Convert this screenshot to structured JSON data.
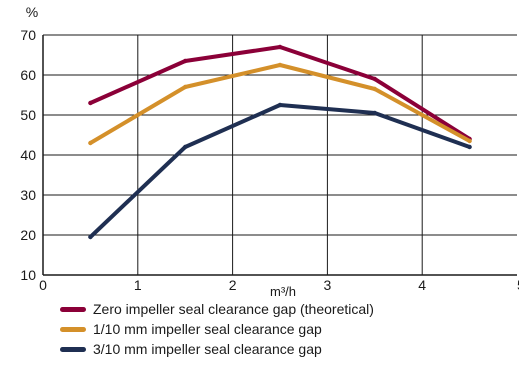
{
  "chart_data": {
    "type": "line",
    "ylabel": "%",
    "xlabel": "m³/h",
    "xlim": [
      0,
      5
    ],
    "ylim": [
      10,
      70
    ],
    "x_ticks": [
      "0",
      "1",
      "2",
      "3",
      "4",
      "5"
    ],
    "y_ticks": [
      "10",
      "20",
      "30",
      "40",
      "50",
      "60",
      "70"
    ],
    "grid": true,
    "legend_position": "bottom-left",
    "series": [
      {
        "name": "Zero impeller seal clearance gap (theoretical)",
        "color": "#8b0038",
        "x": [
          0.5,
          1.5,
          2.5,
          3.5,
          4.5
        ],
        "values": [
          53,
          63.5,
          67,
          59,
          44
        ]
      },
      {
        "name": "1/10 mm impeller seal clearance gap",
        "color": "#d4902a",
        "x": [
          0.5,
          1.5,
          2.5,
          3.5,
          4.5
        ],
        "values": [
          43,
          57,
          62.5,
          56.5,
          43.5
        ]
      },
      {
        "name": "3/10 mm impeller seal clearance gap",
        "color": "#1f2f52",
        "x": [
          0.5,
          1.5,
          2.5,
          3.5,
          4.5
        ],
        "values": [
          19.5,
          42,
          52.5,
          50.5,
          42
        ]
      }
    ]
  }
}
